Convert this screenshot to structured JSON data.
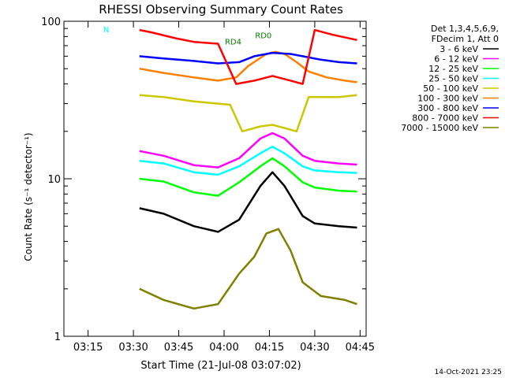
{
  "chart_data": {
    "type": "line",
    "title": "RHESSI Observing Summary Count Rates",
    "xlabel": "Start Time (21-Jul-08 03:07:02)",
    "ylabel": "Count Rate (s⁻¹ detector⁻¹)",
    "yscale": "log",
    "ylim": [
      1,
      100
    ],
    "xlim": [
      "03:07",
      "04:47"
    ],
    "x_ticks": [
      "03:15",
      "03:30",
      "03:45",
      "04:00",
      "04:15",
      "04:30",
      "04:45"
    ],
    "y_ticks": [
      "1",
      "10",
      "100"
    ],
    "legend": {
      "placement": "right",
      "header": [
        "Det 1,3,4,5,6,9,",
        "FDecim 1, Att 0"
      ]
    },
    "series": [
      {
        "name": "3 - 6 keV",
        "color": "#000000",
        "points": [
          [
            "03:32",
            6.5
          ],
          [
            "03:40",
            6.0
          ],
          [
            "03:50",
            5.0
          ],
          [
            "03:58",
            4.6
          ],
          [
            "04:05",
            5.5
          ],
          [
            "04:12",
            9.0
          ],
          [
            "04:16",
            11.0
          ],
          [
            "04:20",
            9.0
          ],
          [
            "04:26",
            5.8
          ],
          [
            "04:30",
            5.2
          ],
          [
            "04:38",
            5.0
          ],
          [
            "04:44",
            4.9
          ]
        ]
      },
      {
        "name": "6 - 12 keV",
        "color": "#ff00ff",
        "points": [
          [
            "03:32",
            15.0
          ],
          [
            "03:40",
            14.0
          ],
          [
            "03:50",
            12.2
          ],
          [
            "03:58",
            11.8
          ],
          [
            "04:05",
            13.5
          ],
          [
            "04:12",
            18.0
          ],
          [
            "04:16",
            19.5
          ],
          [
            "04:20",
            18.0
          ],
          [
            "04:26",
            14.0
          ],
          [
            "04:30",
            13.0
          ],
          [
            "04:38",
            12.5
          ],
          [
            "04:44",
            12.3
          ]
        ]
      },
      {
        "name": "12 - 25 keV",
        "color": "#00ff00",
        "points": [
          [
            "03:32",
            10.0
          ],
          [
            "03:40",
            9.6
          ],
          [
            "03:50",
            8.2
          ],
          [
            "03:58",
            7.8
          ],
          [
            "04:05",
            9.5
          ],
          [
            "04:12",
            12.0
          ],
          [
            "04:16",
            13.5
          ],
          [
            "04:20",
            12.0
          ],
          [
            "04:26",
            9.5
          ],
          [
            "04:30",
            8.8
          ],
          [
            "04:38",
            8.4
          ],
          [
            "04:44",
            8.3
          ]
        ]
      },
      {
        "name": "25 - 50 keV",
        "color": "#00ffff",
        "points": [
          [
            "03:32",
            13.0
          ],
          [
            "03:40",
            12.5
          ],
          [
            "03:50",
            11.0
          ],
          [
            "03:58",
            10.6
          ],
          [
            "04:05",
            12.0
          ],
          [
            "04:12",
            14.5
          ],
          [
            "04:16",
            16.0
          ],
          [
            "04:20",
            14.5
          ],
          [
            "04:26",
            12.0
          ],
          [
            "04:30",
            11.3
          ],
          [
            "04:38",
            11.0
          ],
          [
            "04:44",
            10.9
          ]
        ]
      },
      {
        "name": "50 - 100 keV",
        "color": "#ccc800",
        "points": [
          [
            "03:32",
            34.0
          ],
          [
            "03:40",
            33.0
          ],
          [
            "03:50",
            31.0
          ],
          [
            "03:58",
            30.0
          ],
          [
            "04:02",
            29.5
          ],
          [
            "04:06",
            20.0
          ],
          [
            "04:12",
            21.5
          ],
          [
            "04:16",
            22.0
          ],
          [
            "04:20",
            21.0
          ],
          [
            "04:24",
            20.0
          ],
          [
            "04:28",
            33.0
          ],
          [
            "04:38",
            33.0
          ],
          [
            "04:44",
            34.0
          ]
        ]
      },
      {
        "name": "100 - 300 keV",
        "color": "#ff7f00",
        "points": [
          [
            "03:32",
            50.0
          ],
          [
            "03:40",
            47.0
          ],
          [
            "03:50",
            44.0
          ],
          [
            "03:58",
            42.0
          ],
          [
            "04:04",
            44.0
          ],
          [
            "04:08",
            52.0
          ],
          [
            "04:14",
            62.0
          ],
          [
            "04:17",
            64.0
          ],
          [
            "04:20",
            62.0
          ],
          [
            "04:24",
            55.0
          ],
          [
            "04:28",
            48.0
          ],
          [
            "04:34",
            44.0
          ],
          [
            "04:40",
            42.0
          ],
          [
            "04:44",
            41.0
          ]
        ]
      },
      {
        "name": "300 - 800 keV",
        "color": "#0000ff",
        "points": [
          [
            "03:32",
            60.0
          ],
          [
            "03:40",
            58.0
          ],
          [
            "03:50",
            56.0
          ],
          [
            "03:58",
            54.0
          ],
          [
            "04:05",
            55.0
          ],
          [
            "04:10",
            60.0
          ],
          [
            "04:16",
            63.0
          ],
          [
            "04:22",
            62.0
          ],
          [
            "04:26",
            60.0
          ],
          [
            "04:32",
            57.0
          ],
          [
            "04:38",
            55.0
          ],
          [
            "04:44",
            54.0
          ]
        ]
      },
      {
        "name": "800 - 7000 keV",
        "color": "#ff0000",
        "points": [
          [
            "03:32",
            88.0
          ],
          [
            "03:36",
            85.0
          ],
          [
            "03:44",
            78.0
          ],
          [
            "03:50",
            74.0
          ],
          [
            "03:58",
            72.0
          ],
          [
            "04:04",
            40.0
          ],
          [
            "04:10",
            42.0
          ],
          [
            "04:16",
            45.0
          ],
          [
            "04:22",
            42.0
          ],
          [
            "04:26",
            40.0
          ],
          [
            "04:30",
            88.0
          ],
          [
            "04:36",
            82.0
          ],
          [
            "04:44",
            76.0
          ]
        ]
      },
      {
        "name": "7000 - 15000 keV",
        "color": "#808000",
        "points": [
          [
            "03:32",
            2.0
          ],
          [
            "03:40",
            1.7
          ],
          [
            "03:50",
            1.5
          ],
          [
            "03:58",
            1.6
          ],
          [
            "04:05",
            2.5
          ],
          [
            "04:10",
            3.2
          ],
          [
            "04:14",
            4.5
          ],
          [
            "04:18",
            4.8
          ],
          [
            "04:22",
            3.5
          ],
          [
            "04:26",
            2.2
          ],
          [
            "04:32",
            1.8
          ],
          [
            "04:40",
            1.7
          ],
          [
            "04:44",
            1.6
          ]
        ]
      }
    ],
    "annotations": [
      {
        "text": "N",
        "x": "03:21",
        "y": 85,
        "color": "#00ffff"
      },
      {
        "text": "RD0",
        "x": "04:13",
        "y": 78,
        "color": "#008000"
      },
      {
        "text": "RD4",
        "x": "04:03",
        "y": 71,
        "color": "#008000"
      },
      {
        "text": "14-Oct-2021 23:25",
        "placement": "bottom-right",
        "color": "#000000"
      }
    ]
  }
}
